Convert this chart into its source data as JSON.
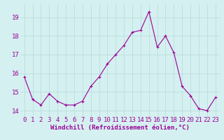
{
  "x": [
    0,
    1,
    2,
    3,
    4,
    5,
    6,
    7,
    8,
    9,
    10,
    11,
    12,
    13,
    14,
    15,
    16,
    17,
    18,
    19,
    20,
    21,
    22,
    23
  ],
  "y": [
    15.8,
    14.6,
    14.3,
    14.9,
    14.5,
    14.3,
    14.3,
    14.5,
    15.3,
    15.8,
    16.5,
    17.0,
    17.5,
    18.2,
    18.3,
    19.3,
    17.4,
    18.0,
    17.1,
    15.3,
    14.8,
    14.1,
    14.0,
    14.7
  ],
  "line_color": "#990099",
  "marker": "+",
  "marker_size": 4,
  "bg_color": "#d5f0f0",
  "grid_color": "#b8dada",
  "xlabel": "Windchill (Refroidissement éolien,°C)",
  "ylabel_ticks": [
    14,
    15,
    16,
    17,
    18,
    19
  ],
  "xtick_labels": [
    "0",
    "1",
    "2",
    "3",
    "4",
    "5",
    "6",
    "7",
    "8",
    "9",
    "10",
    "11",
    "12",
    "13",
    "14",
    "15",
    "16",
    "17",
    "18",
    "19",
    "20",
    "21",
    "22",
    "23"
  ],
  "ylim": [
    13.7,
    19.7
  ],
  "xlim": [
    -0.5,
    23.5
  ],
  "font_color": "#990099",
  "xlabel_fontsize": 6.5,
  "tick_fontsize": 6.5,
  "linewidth": 0.8,
  "marker_size_pt": 3.5
}
